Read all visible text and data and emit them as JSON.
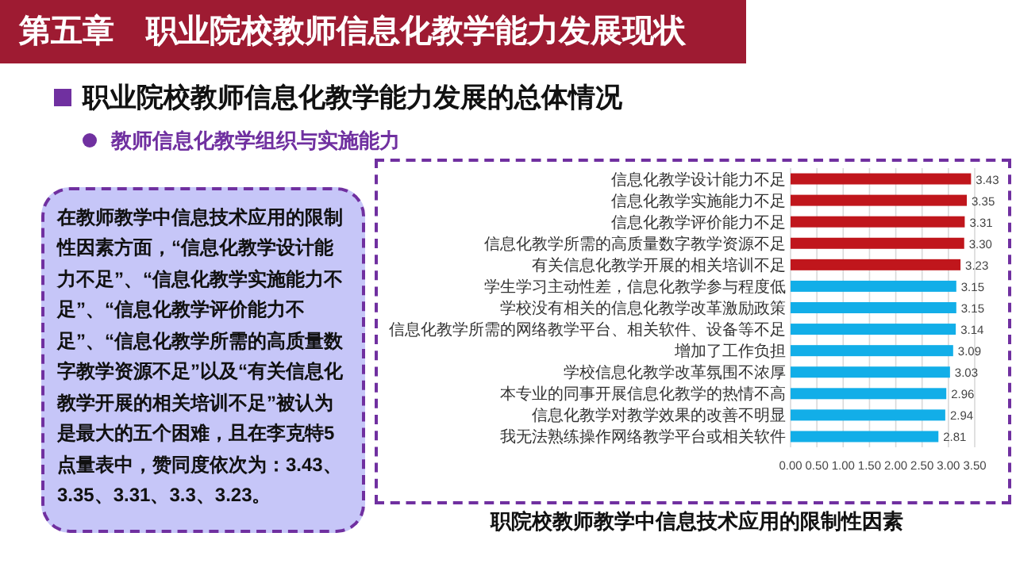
{
  "chart_data": {
    "type": "bar",
    "orientation": "horizontal",
    "title": "职院校教师教学中信息技术应用的限制性因素",
    "annotations": [
      "第五章　职业院校教师信息化教学能力发展现状",
      "职业院校教师信息化教学能力发展的总体情况",
      "教师信息化教学组织与实施能力",
      "在教师教学中信息技术应用的限制性因素方面，“信息化教学设计能力不足”、“信息化教学实施能力不足”、“信息化教学评价能力不足”、“信息化教学所需的高质量数字教学资源不足”以及“有关信息化教学开展的相关培训不足”被认为是最大的五个困难，且在李克特5点量表中，赞同度依次为：3.43、3.35、3.31、3.3、3.23。"
    ],
    "categories": [
      "信息化教学设计能力不足",
      "信息化教学实施能力不足",
      "信息化教学评价能力不足",
      "信息化教学所需的高质量数字教学资源不足",
      "有关信息化教学开展的相关培训不足",
      "学生学习主动性差，信息化教学参与程度低",
      "学校没有相关的信息化教学改革激励政策",
      "信息化教学所需的网络教学平台、相关软件、设备等不足",
      "增加了工作负担",
      "学校信息化教学改革氛围不浓厚",
      "本专业的同事开展信息化教学的热情不高",
      "信息化教学对教学效果的改善不明显",
      "我无法熟练操作网络教学平台或相关软件"
    ],
    "values": [
      3.43,
      3.35,
      3.31,
      3.3,
      3.23,
      3.15,
      3.15,
      3.14,
      3.09,
      3.03,
      2.96,
      2.94,
      2.81
    ],
    "value_labels": [
      "3.43",
      "3.35",
      "3.31",
      "3.30",
      "3.23",
      "3.15",
      "3.15",
      "3.14",
      "3.09",
      "3.03",
      "2.96",
      "2.94",
      "2.81"
    ],
    "colors": [
      "#c0161c",
      "#c0161c",
      "#c0161c",
      "#c0161c",
      "#c0161c",
      "#12aee8",
      "#12aee8",
      "#12aee8",
      "#12aee8",
      "#12aee8",
      "#12aee8",
      "#12aee8",
      "#12aee8"
    ],
    "xlim": [
      0,
      3.5
    ],
    "xticks": [
      {
        "value": 0,
        "label": "0.00"
      },
      {
        "value": 0.5,
        "label": "0.50"
      },
      {
        "value": 1,
        "label": "1.00"
      },
      {
        "value": 1.5,
        "label": "1.50"
      },
      {
        "value": 2,
        "label": "2.00"
      },
      {
        "value": 2.5,
        "label": "2.50"
      },
      {
        "value": 3,
        "label": "3.00"
      },
      {
        "value": 3.5,
        "label": "3.50"
      }
    ],
    "grid": "x"
  }
}
